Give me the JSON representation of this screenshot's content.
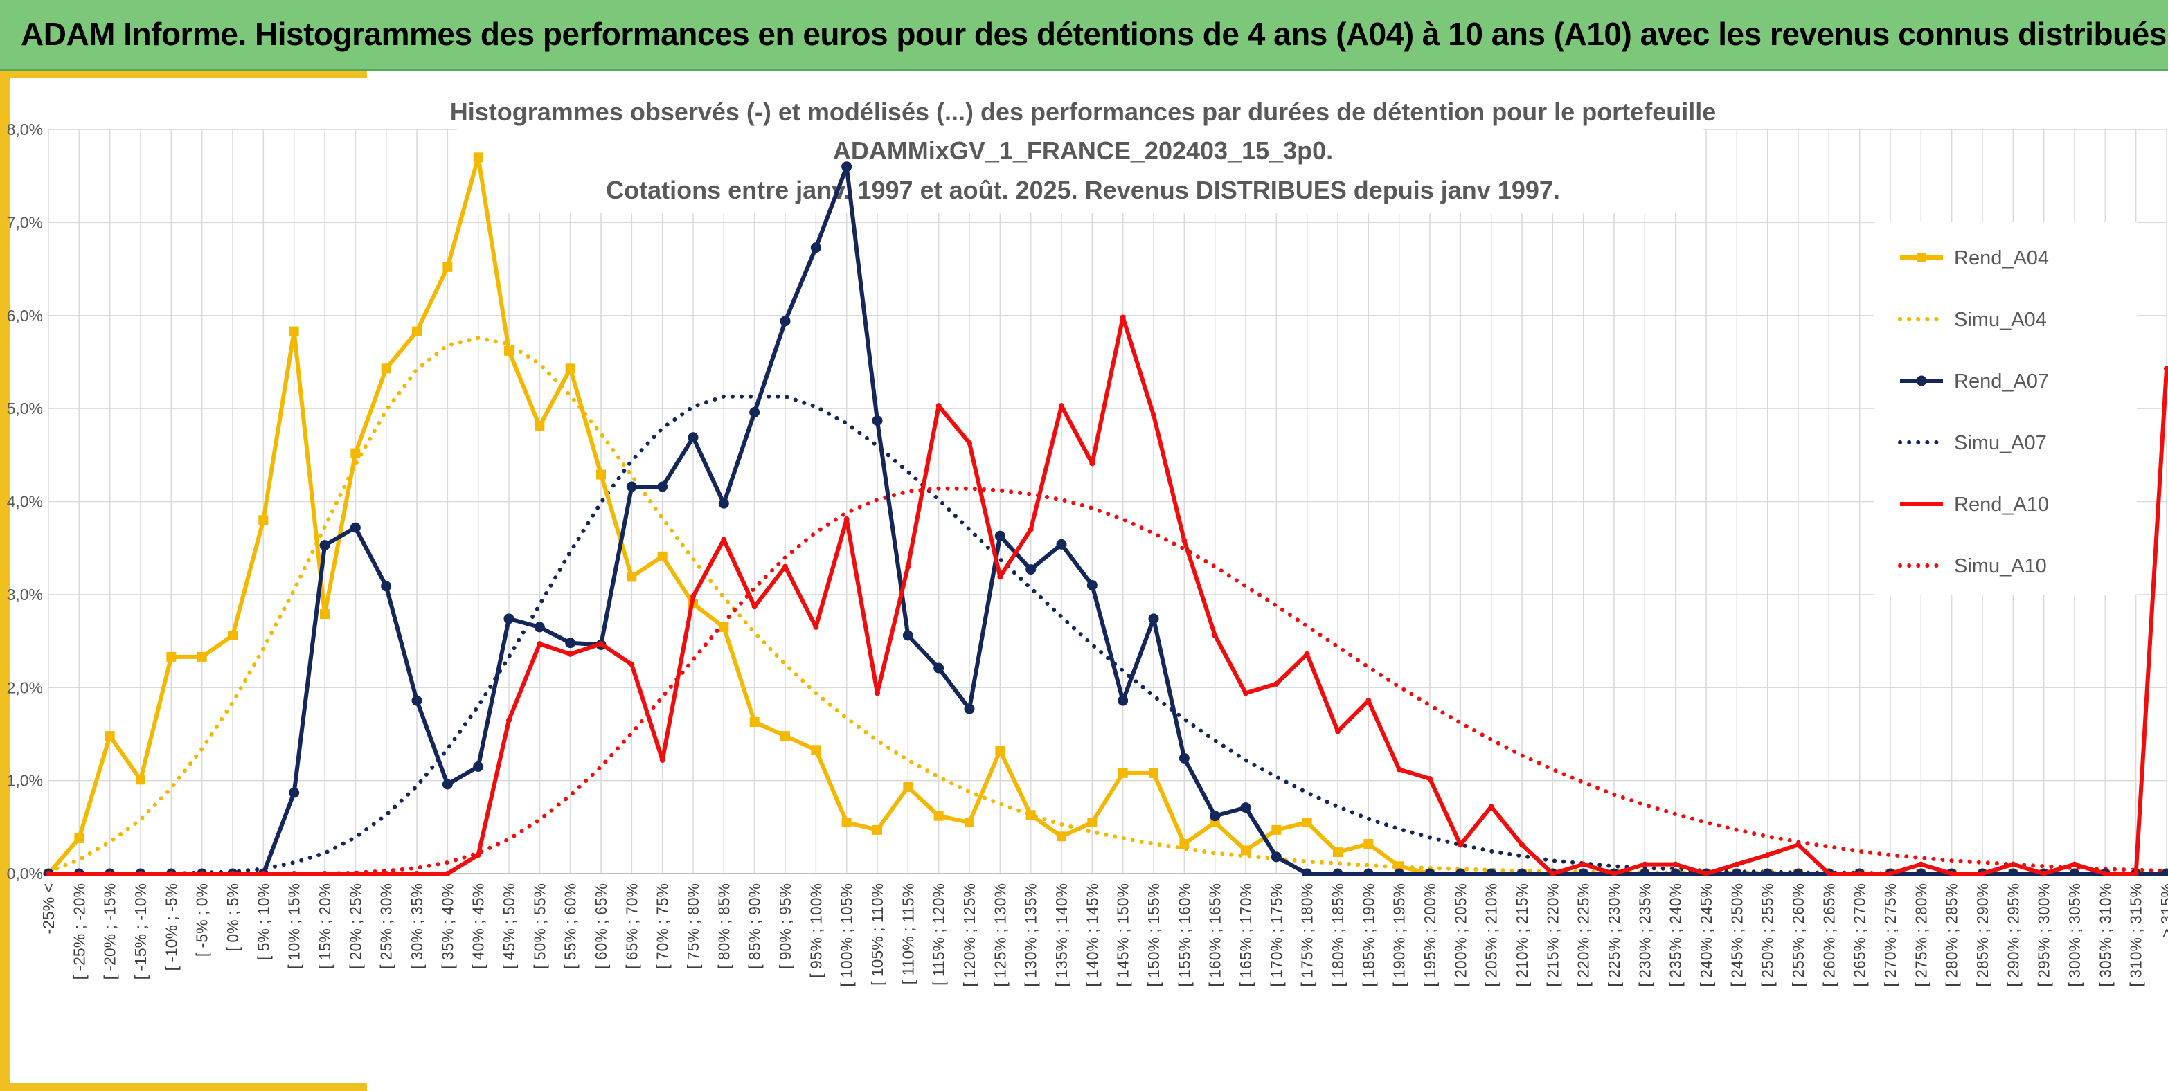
{
  "header": {
    "title": "ADAM Informe. Histogrammes des performances en euros pour des détentions de 4 ans (A04) à 10 ans (A10) avec les revenus connus distribués"
  },
  "colors": {
    "banner": "#7dc77b",
    "a04": "#f5b800",
    "a07": "#14275a",
    "a10": "#f20d0d",
    "frame": "#f0c020"
  },
  "chart_data": {
    "type": "line",
    "title_lines": [
      "Histogrammes observés (-) et modélisés (...) des performances par durées de détention pour le portefeuille",
      "ADAMMixGV_1_FRANCE_202403_15_3p0.",
      "Cotations entre janv. 1997 et août. 2025. Revenus DISTRIBUES depuis janv 1997."
    ],
    "ylim": [
      0,
      8
    ],
    "y_ticks": [
      "0,0%",
      "1,0%",
      "2,0%",
      "3,0%",
      "4,0%",
      "5,0%",
      "6,0%",
      "7,0%",
      "8,0%"
    ],
    "grid": true,
    "legend_position": "right",
    "categories": [
      "-25% <",
      "[ -25% ; -20%",
      "[ -20% ; -15%",
      "[ -15% ; -10%",
      "[ -10% ; -5%",
      "[ -5% ; 0%",
      "[ 0% ; 5%",
      "[ 5% ; 10%",
      "[ 10% ; 15%",
      "[ 15% ; 20%",
      "[ 20% ; 25%",
      "[ 25% ; 30%",
      "[ 30% ; 35%",
      "[ 35% ; 40%",
      "[ 40% ; 45%",
      "[ 45% ; 50%",
      "[ 50% ; 55%",
      "[ 55% ; 60%",
      "[ 60% ; 65%",
      "[ 65% ; 70%",
      "[ 70% ; 75%",
      "[ 75% ; 80%",
      "[ 80% ; 85%",
      "[ 85% ; 90%",
      "[ 90% ; 95%",
      "[ 95% ; 100%",
      "[ 100% ; 105%",
      "[ 105% ; 110%",
      "[ 110% ; 115%",
      "[ 115% ; 120%",
      "[ 120% ; 125%",
      "[ 125% ; 130%",
      "[ 130% ; 135%",
      "[ 135% ; 140%",
      "[ 140% ; 145%",
      "[ 145% ; 150%",
      "[ 150% ; 155%",
      "[ 155% ; 160%",
      "[ 160% ; 165%",
      "[ 165% ; 170%",
      "[ 170% ; 175%",
      "[ 175% ; 180%",
      "[ 180% ; 185%",
      "[ 185% ; 190%",
      "[ 190% ; 195%",
      "[ 195% ; 200%",
      "[ 200% ; 205%",
      "[ 205% ; 210%",
      "[ 210% ; 215%",
      "[ 215% ; 220%",
      "[ 220% ; 225%",
      "[ 225% ; 230%",
      "[ 230% ; 235%",
      "[ 235% ; 240%",
      "[ 240% ; 245%",
      "[ 245% ; 250%",
      "[ 250% ; 255%",
      "[ 255% ; 260%",
      "[ 260% ; 265%",
      "[ 265% ; 270%",
      "[ 270% ; 275%",
      "[ 275% ; 280%",
      "[ 280% ; 285%",
      "[ 285% ; 290%",
      "[ 290% ; 295%",
      "[ 295% ; 300%",
      "[ 300% ; 305%",
      "[ 305% ; 310%",
      "[ 310% ; 315%",
      "> 315%"
    ],
    "series": [
      {
        "name": "Rend_A04",
        "style": "solid",
        "marker": "square",
        "color": "#f5b800",
        "values": [
          0.0,
          0.38,
          1.48,
          1.01,
          2.33,
          2.33,
          2.56,
          3.8,
          5.83,
          2.79,
          4.52,
          5.43,
          5.83,
          6.52,
          7.7,
          5.62,
          4.81,
          5.43,
          4.29,
          3.19,
          3.41,
          2.9,
          2.65,
          1.63,
          1.48,
          1.33,
          0.55,
          0.47,
          0.93,
          0.62,
          0.55,
          1.32,
          0.63,
          0.4,
          0.55,
          1.08,
          1.08,
          0.32,
          0.55,
          0.25,
          0.47,
          0.55,
          0.23,
          0.32,
          0.08,
          0.0,
          0.0,
          0.0,
          0.0,
          0.0,
          0.0,
          0.0,
          0.0,
          0.0,
          0.0,
          0.0,
          0.0,
          0.0,
          0.0,
          0.0,
          0.0,
          0.0,
          0.0,
          0.0,
          0.0,
          0.0,
          0.0,
          0.0,
          0.0,
          0.0
        ]
      },
      {
        "name": "Simu_A04",
        "style": "dotted",
        "color": "#f5b800",
        "values": [
          0.02,
          0.15,
          0.34,
          0.58,
          0.92,
          1.34,
          1.84,
          2.42,
          3.05,
          3.73,
          4.4,
          4.98,
          5.42,
          5.68,
          5.76,
          5.69,
          5.48,
          5.14,
          4.73,
          4.28,
          3.82,
          3.38,
          2.97,
          2.59,
          2.25,
          1.94,
          1.67,
          1.43,
          1.22,
          1.04,
          0.88,
          0.75,
          0.63,
          0.53,
          0.45,
          0.38,
          0.32,
          0.27,
          0.22,
          0.19,
          0.16,
          0.13,
          0.11,
          0.09,
          0.07,
          0.06,
          0.05,
          0.04,
          0.03,
          0.03,
          0.02,
          0.02,
          0.01,
          0.01,
          0.01,
          0.01,
          0.01,
          0.0,
          0.0,
          0.0,
          0.0,
          0.0,
          0.0,
          0.0,
          0.0,
          0.0,
          0.0,
          0.0,
          0.0,
          0.0
        ]
      },
      {
        "name": "Rend_A07",
        "style": "solid",
        "marker": "circle",
        "color": "#14275a",
        "values": [
          0.0,
          0.0,
          0.0,
          0.0,
          0.0,
          0.0,
          0.0,
          0.0,
          0.87,
          3.53,
          3.72,
          3.09,
          1.86,
          0.96,
          1.15,
          2.74,
          2.65,
          2.48,
          2.46,
          4.16,
          4.16,
          4.69,
          3.98,
          4.96,
          5.94,
          6.73,
          7.6,
          4.87,
          2.56,
          2.21,
          1.77,
          3.63,
          3.27,
          3.54,
          3.1,
          1.86,
          2.74,
          1.24,
          0.62,
          0.71,
          0.18,
          0.0,
          0.0,
          0.0,
          0.0,
          0.0,
          0.0,
          0.0,
          0.0,
          0.0,
          0.0,
          0.0,
          0.0,
          0.0,
          0.0,
          0.0,
          0.0,
          0.0,
          0.0,
          0.0,
          0.0,
          0.0,
          0.0,
          0.0,
          0.0,
          0.0,
          0.0,
          0.0,
          0.0,
          0.0
        ]
      },
      {
        "name": "Simu_A07",
        "style": "dotted",
        "color": "#14275a",
        "values": [
          0.0,
          0.0,
          0.0,
          0.0,
          0.0,
          0.01,
          0.02,
          0.05,
          0.12,
          0.22,
          0.39,
          0.63,
          0.94,
          1.34,
          1.8,
          2.33,
          2.89,
          3.46,
          3.99,
          4.44,
          4.79,
          5.02,
          5.13,
          5.13,
          5.13,
          5.02,
          4.84,
          4.6,
          4.32,
          4.02,
          3.7,
          3.38,
          3.07,
          2.76,
          2.46,
          2.18,
          1.91,
          1.66,
          1.43,
          1.22,
          1.04,
          0.87,
          0.72,
          0.59,
          0.48,
          0.39,
          0.31,
          0.24,
          0.19,
          0.14,
          0.11,
          0.08,
          0.06,
          0.05,
          0.03,
          0.02,
          0.02,
          0.01,
          0.01,
          0.01,
          0.0,
          0.0,
          0.0,
          0.0,
          0.0,
          0.0,
          0.0,
          0.0,
          0.0,
          0.0
        ]
      },
      {
        "name": "Rend_A10",
        "style": "solid",
        "marker": "none",
        "color": "#f20d0d",
        "values": [
          0.0,
          0.0,
          0.0,
          0.0,
          0.0,
          0.0,
          0.0,
          0.0,
          0.0,
          0.0,
          0.0,
          0.0,
          0.0,
          0.0,
          0.2,
          1.65,
          2.47,
          2.36,
          2.47,
          2.25,
          1.22,
          2.98,
          3.59,
          2.87,
          3.3,
          2.65,
          3.81,
          1.94,
          3.3,
          5.03,
          4.63,
          3.19,
          3.7,
          5.03,
          4.41,
          5.98,
          4.93,
          3.58,
          2.56,
          1.94,
          2.04,
          2.36,
          1.53,
          1.86,
          1.12,
          1.02,
          0.31,
          0.72,
          0.31,
          0.0,
          0.1,
          0.0,
          0.1,
          0.1,
          0.0,
          0.1,
          0.2,
          0.31,
          0.0,
          0.0,
          0.0,
          0.1,
          0.0,
          0.0,
          0.1,
          0.0,
          0.1,
          0.0,
          0.0,
          5.43
        ]
      },
      {
        "name": "Simu_A10",
        "style": "dotted",
        "color": "#f20d0d",
        "values": [
          0.0,
          0.0,
          0.0,
          0.0,
          0.0,
          0.0,
          0.0,
          0.0,
          0.0,
          0.0,
          0.01,
          0.03,
          0.06,
          0.12,
          0.22,
          0.37,
          0.58,
          0.84,
          1.15,
          1.51,
          1.9,
          2.3,
          2.7,
          3.07,
          3.4,
          3.67,
          3.88,
          4.02,
          4.11,
          4.14,
          4.14,
          4.12,
          4.08,
          4.02,
          3.93,
          3.81,
          3.66,
          3.49,
          3.3,
          3.09,
          2.88,
          2.66,
          2.44,
          2.22,
          2.01,
          1.81,
          1.62,
          1.44,
          1.27,
          1.12,
          0.98,
          0.85,
          0.74,
          0.64,
          0.55,
          0.47,
          0.4,
          0.34,
          0.29,
          0.24,
          0.2,
          0.17,
          0.14,
          0.12,
          0.1,
          0.08,
          0.06,
          0.05,
          0.04,
          0.03
        ]
      }
    ],
    "legend": [
      "Rend_A04",
      "Simu_A04",
      "Rend_A07",
      "Simu_A07",
      "Rend_A10",
      "Simu_A10"
    ]
  }
}
